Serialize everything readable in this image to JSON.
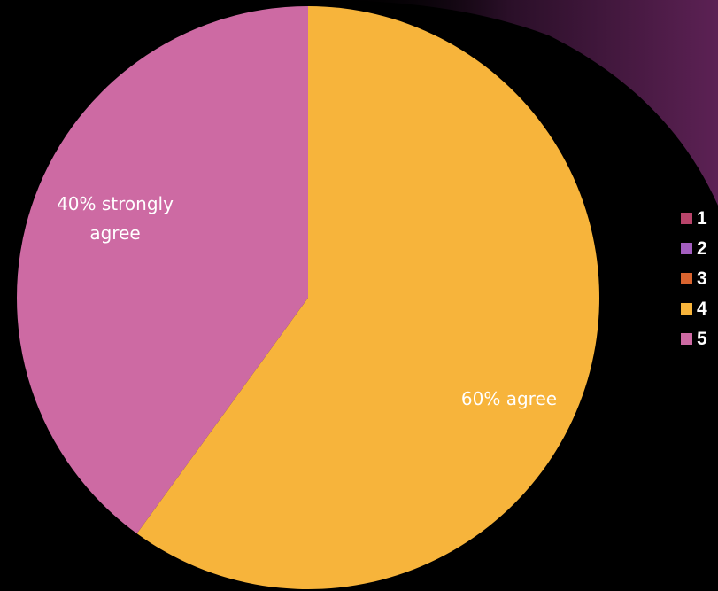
{
  "colors": {
    "background": "#000000",
    "swoosh": "#5c2154"
  },
  "chart_data": {
    "type": "pie",
    "title": "",
    "start_angle": "top, clockwise",
    "slices": [
      {
        "value": 60,
        "label": "60% agree",
        "color": "#f7b43b",
        "legend": "4"
      },
      {
        "value": 40,
        "label": "40% strongly agree",
        "label_lines": [
          "40% strongly",
          "agree"
        ],
        "color": "#cd6aa3",
        "legend": "5"
      }
    ],
    "legend": {
      "placement": "right",
      "entries": [
        {
          "label": "1",
          "color": "#b8446a"
        },
        {
          "label": "2",
          "color": "#a35ebf"
        },
        {
          "label": "3",
          "color": "#d9642f"
        },
        {
          "label": "4",
          "color": "#f7b43b"
        },
        {
          "label": "5",
          "color": "#cd6aa3"
        }
      ]
    }
  }
}
